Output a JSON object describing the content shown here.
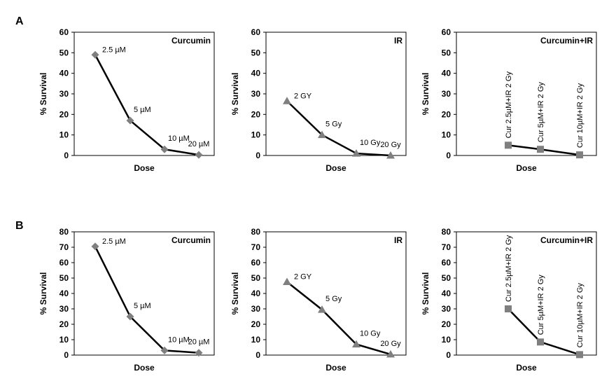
{
  "figure": {
    "rows": [
      {
        "label": "A",
        "panels": [
          {
            "title": "Curcumin",
            "ylim": [
              0,
              60
            ],
            "yticks": [
              0,
              10,
              20,
              30,
              40,
              50,
              60
            ]
          },
          {
            "title": "IR",
            "ylim": [
              0,
              60
            ],
            "yticks": [
              0,
              10,
              20,
              30,
              40,
              50,
              60
            ]
          },
          {
            "title": "Curcumin+IR",
            "ylim": [
              0,
              60
            ],
            "yticks": [
              0,
              10,
              20,
              30,
              40,
              50,
              60
            ]
          }
        ]
      },
      {
        "label": "B",
        "panels": [
          {
            "title": "Curcumin",
            "ylim": [
              0,
              80
            ],
            "yticks": [
              0,
              10,
              20,
              30,
              40,
              50,
              60,
              70,
              80
            ]
          },
          {
            "title": "IR",
            "ylim": [
              0,
              80
            ],
            "yticks": [
              0,
              10,
              20,
              30,
              40,
              50,
              60,
              70,
              80
            ]
          },
          {
            "title": "Curcumin+IR",
            "ylim": [
              0,
              80
            ],
            "yticks": [
              0,
              10,
              20,
              30,
              40,
              50,
              60,
              70,
              80
            ]
          }
        ]
      }
    ]
  },
  "chart_data": [
    {
      "type": "line",
      "panel": "A",
      "title": "Curcumin",
      "xlabel": "Dose",
      "ylabel": "% Survival",
      "ylim": [
        0,
        60
      ],
      "marker": "diamond",
      "label_rotation": 0,
      "categories": [
        "2.5 µM",
        "5 µM",
        "10 µM",
        "20 µM"
      ],
      "values": [
        49,
        17,
        3,
        0.3
      ]
    },
    {
      "type": "line",
      "panel": "A",
      "title": "IR",
      "xlabel": "Dose",
      "ylabel": "% Survival",
      "ylim": [
        0,
        60
      ],
      "marker": "triangle",
      "label_rotation": 0,
      "categories": [
        "2 GY",
        "5 Gy",
        "10 Gy",
        "20 Gy"
      ],
      "values": [
        26.5,
        10,
        1,
        0
      ]
    },
    {
      "type": "line",
      "panel": "A",
      "title": "Curcumin+IR",
      "xlabel": "Dose",
      "ylabel": "% Survival",
      "ylim": [
        0,
        60
      ],
      "marker": "square",
      "label_rotation": -90,
      "categories": [
        "Cur 2.5µM+IR 2 Gy",
        "Cur 5µM+IR 2 Gy",
        "Cur 10µM+IR 2 Gy"
      ],
      "values": [
        5,
        3,
        0.3
      ]
    },
    {
      "type": "line",
      "panel": "B",
      "title": "Curcumin",
      "xlabel": "Dose",
      "ylabel": "% Survival",
      "ylim": [
        0,
        80
      ],
      "marker": "diamond",
      "label_rotation": 0,
      "categories": [
        "2.5 µM",
        "5 µM",
        "10 µM",
        "20 µM"
      ],
      "values": [
        70.5,
        25,
        3,
        1.5
      ]
    },
    {
      "type": "line",
      "panel": "B",
      "title": "IR",
      "xlabel": "Dose",
      "ylabel": "% Survival",
      "ylim": [
        0,
        80
      ],
      "marker": "triangle",
      "label_rotation": 0,
      "categories": [
        "2 GY",
        "5 Gy",
        "10 Gy",
        "20 Gy"
      ],
      "values": [
        47.5,
        29.5,
        7,
        0.5
      ]
    },
    {
      "type": "line",
      "panel": "B",
      "title": "Curcumin+IR",
      "xlabel": "Dose",
      "ylabel": "% Survival",
      "ylim": [
        0,
        80
      ],
      "marker": "square",
      "label_rotation": -90,
      "categories": [
        "Cur 2.5µM+IR 2 Gy",
        "Cur 5µM+IR 2 Gy",
        "Cur 10µM+IR 2 Gy"
      ],
      "values": [
        30,
        8.5,
        0.3
      ]
    }
  ],
  "colors": {
    "line": "#000000",
    "marker": "#7f7f7f",
    "axis": "#000000"
  }
}
